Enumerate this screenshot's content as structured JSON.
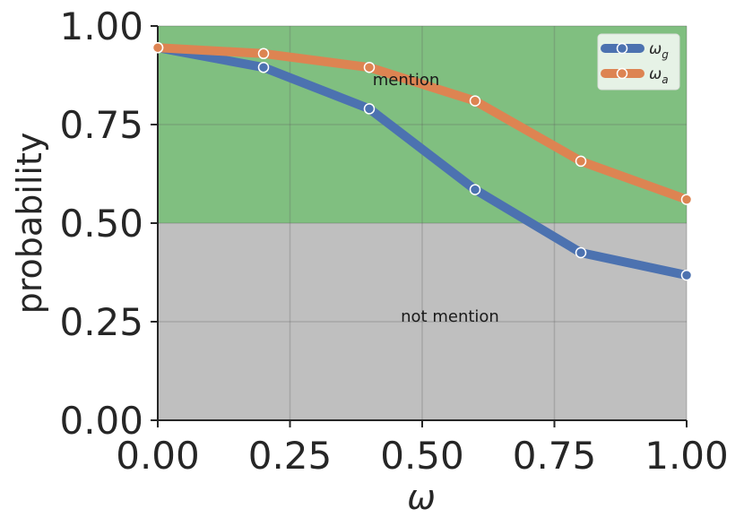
{
  "chart_data": {
    "type": "line",
    "x": [
      0.0,
      0.2,
      0.4,
      0.6,
      0.8,
      1.0
    ],
    "series": [
      {
        "name": "ω_g",
        "legend_base": "ω",
        "legend_sub": "g",
        "color": "#4c72b0",
        "values": [
          0.945,
          0.895,
          0.79,
          0.585,
          0.425,
          0.368
        ]
      },
      {
        "name": "ω_a",
        "legend_base": "ω",
        "legend_sub": "a",
        "color": "#dd8452",
        "values": [
          0.945,
          0.93,
          0.895,
          0.81,
          0.657,
          0.56
        ]
      }
    ],
    "xlabel": "ω",
    "ylabel": "probability",
    "xlim": [
      0,
      1
    ],
    "ylim": [
      0,
      1
    ],
    "xticks": [
      "0.00",
      "0.25",
      "0.50",
      "0.75",
      "1.00"
    ],
    "yticks": [
      "0.00",
      "0.25",
      "0.50",
      "0.75",
      "1.00"
    ],
    "regions": [
      {
        "label": "mention",
        "from": 0.5,
        "to": 1.0,
        "color": "#80bf80"
      },
      {
        "label": "not mention",
        "from": 0.0,
        "to": 0.5,
        "color": "#bfbfbf"
      }
    ],
    "grid": true,
    "legend_position": "top-right"
  }
}
